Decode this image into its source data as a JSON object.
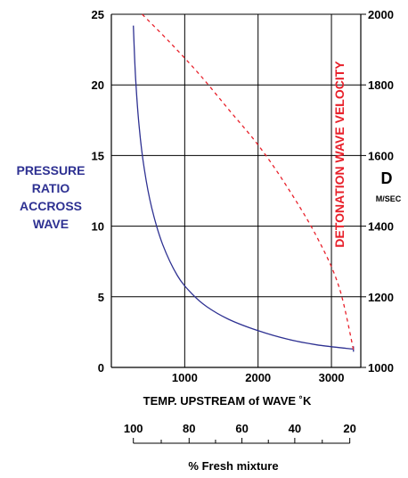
{
  "chart_data": {
    "type": "line",
    "x_axis": {
      "label": "TEMP. UPSTREAM of WAVE ˚K",
      "range": [
        0,
        3400
      ],
      "ticks": [
        1000,
        2000,
        3000
      ],
      "tick_labels": [
        "1000",
        "2000",
        "3000"
      ]
    },
    "y_left_axis": {
      "label_lines": [
        "PRESSURE",
        "RATIO",
        "ACCROSS",
        "WAVE"
      ],
      "range": [
        0,
        25
      ],
      "ticks": [
        0,
        5,
        10,
        15,
        20,
        25
      ],
      "tick_labels": [
        "0",
        "5",
        "10",
        "15",
        "20",
        "25"
      ]
    },
    "y_right_axis": {
      "label": "DETONATION WAVE VELOCITY",
      "symbol": "D",
      "unit": "M/SEC",
      "range": [
        1000,
        2000
      ],
      "ticks": [
        1000,
        1200,
        1400,
        1600,
        1800,
        2000
      ],
      "tick_labels": [
        "1000",
        "1200",
        "1400",
        "1600",
        "1800",
        "2000"
      ]
    },
    "secondary_x_axis": {
      "label": "% Fresh mixture",
      "tick_labels": [
        "100",
        "80",
        "60",
        "40",
        "20"
      ],
      "values": [
        100,
        80,
        60,
        40,
        20
      ],
      "temp_positions": [
        300,
        1060,
        1780,
        2500,
        3250
      ]
    },
    "grid": true,
    "series": [
      {
        "color": "#2e3192",
        "style": "solid",
        "axis": "left",
        "x": [
          300,
          330,
          380,
          450,
          550,
          700,
          900,
          1100,
          1300,
          1600,
          2000,
          2400,
          2800,
          3200,
          3300
        ],
        "y": [
          24.2,
          20.5,
          17.0,
          14.0,
          11.3,
          8.7,
          6.5,
          5.2,
          4.3,
          3.4,
          2.6,
          2.0,
          1.6,
          1.35,
          1.3
        ]
      },
      {
        "color": "#e8202a",
        "style": "dashed",
        "axis": "right",
        "x": [
          420,
          800,
          1200,
          1600,
          2000,
          2400,
          2800,
          3100,
          3300
        ],
        "y": [
          2000,
          1920,
          1830,
          1730,
          1630,
          1510,
          1370,
          1230,
          1050
        ]
      }
    ]
  }
}
